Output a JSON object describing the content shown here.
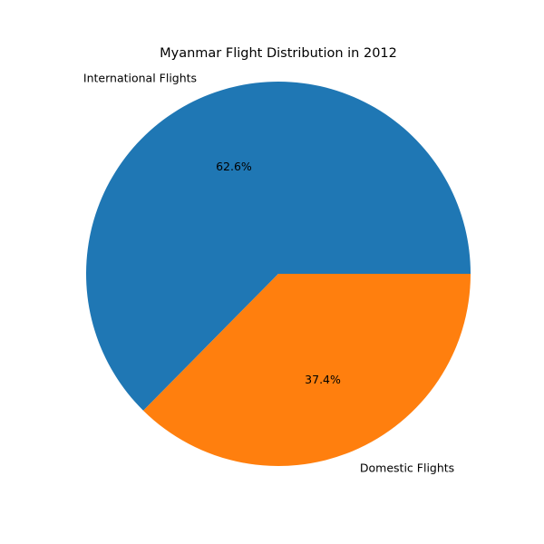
{
  "chart_data": {
    "type": "pie",
    "title": "Myanmar Flight Distribution in 2012",
    "labels": [
      "International Flights",
      "Domestic Flights"
    ],
    "values": [
      62.6,
      37.4
    ],
    "value_labels": [
      "62.6%",
      "37.4%"
    ],
    "colors": [
      "#1f77b4",
      "#ff7f0e"
    ],
    "start_angle_deg": 0,
    "direction": "counterclockwise",
    "legend": "none"
  }
}
